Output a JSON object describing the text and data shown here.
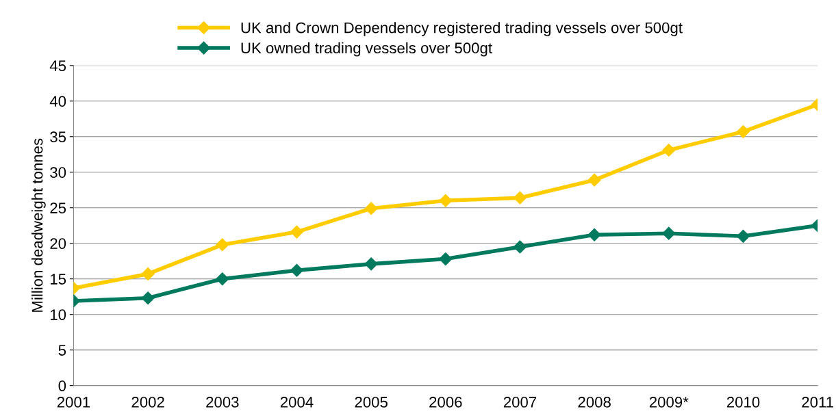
{
  "chart_data": {
    "type": "line",
    "ylabel": "Million deadweight tonnes",
    "categories": [
      "2001",
      "2002",
      "2003",
      "2004",
      "2005",
      "2006",
      "2007",
      "2008",
      "2009*",
      "2010",
      "2011"
    ],
    "series": [
      {
        "name": "UK and Crown Dependency registered trading vessels over 500gt",
        "color": "#ffcc00",
        "values": [
          13.7,
          15.7,
          19.8,
          21.6,
          24.9,
          26.0,
          26.4,
          28.9,
          33.1,
          35.7,
          39.5
        ]
      },
      {
        "name": "UK owned trading vessels over 500gt",
        "color": "#007a5e",
        "values": [
          11.9,
          12.3,
          15.0,
          16.2,
          17.1,
          17.8,
          19.5,
          21.2,
          21.4,
          21.0,
          22.5
        ]
      }
    ],
    "ylim": [
      0,
      45
    ],
    "yticks": [
      0,
      5,
      10,
      15,
      20,
      25,
      30,
      35,
      40,
      45
    ],
    "grid": "y",
    "legend": "top",
    "marker": "diamond",
    "line_style": "solid"
  }
}
